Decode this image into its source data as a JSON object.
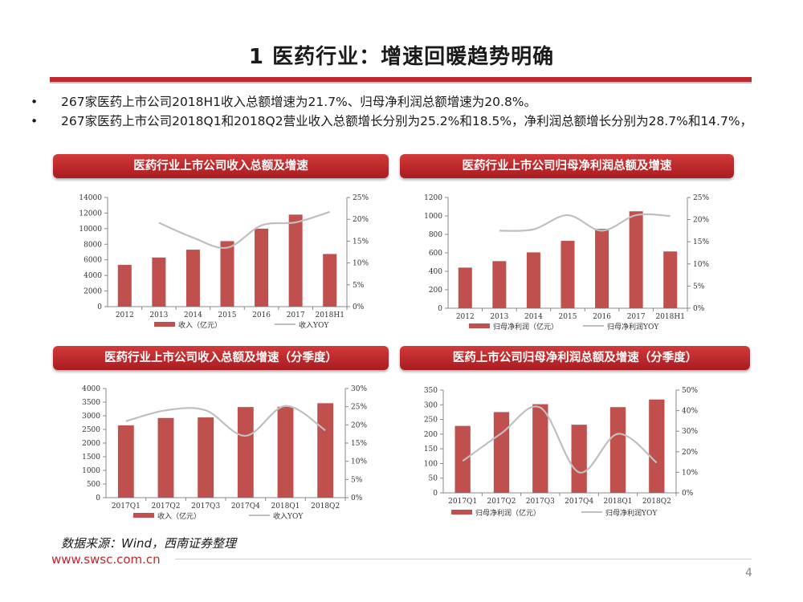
{
  "page": {
    "title": "1 医药行业：增速回暖趋势明确",
    "bullets": [
      "267家医药上市公司2018H1收入总额增速为21.7%、归母净利润总额增速为20.8%。",
      "267家医药上市公司2018Q1和2018Q2营业收入总额增长分别为25.2%和18.5%，净利润总额增长分别为28.7%和14.7%，"
    ],
    "bullet_symbol": "•",
    "source": "数据来源：Wind，西南证券整理",
    "website": "www.swsc.com.cn",
    "page_number": "4",
    "accent_color": "#c0282c"
  },
  "panels": [
    {
      "header": "医药行业上市公司收入总额及增速"
    },
    {
      "header": "医药行业上市公司归母净利润总额及增速"
    },
    {
      "header": "医药行业上市公司收入总额及增速（分季度）"
    },
    {
      "header": "医药上市公司归母净利润总额及增速（分季度）"
    }
  ],
  "chart_data": [
    {
      "type": "bar",
      "categories": [
        "2012",
        "2013",
        "2014",
        "2015",
        "2016",
        "2017",
        "2018H1"
      ],
      "series": [
        {
          "name": "收入（亿元）",
          "kind": "bar",
          "axis": "left",
          "values": [
            5350,
            6300,
            7300,
            8400,
            10000,
            11800,
            6750
          ]
        },
        {
          "name": "收入YOY",
          "kind": "line",
          "axis": "right",
          "values": [
            null,
            19.2,
            15.8,
            13.5,
            18.6,
            19.3,
            21.7
          ]
        }
      ],
      "left_ticks": [
        "14000",
        "12000",
        "10000",
        "8000",
        "6000",
        "4000",
        "2000",
        "0"
      ],
      "right_ticks": [
        "25%",
        "20%",
        "15%",
        "10%",
        "5%",
        "0%"
      ],
      "ylim": [
        0,
        14000
      ],
      "y2lim": [
        0,
        25
      ],
      "legend": "bottom",
      "bar_color": "#c0504d",
      "line_color": "#bfbfbf"
    },
    {
      "type": "bar",
      "categories": [
        "2012",
        "2013",
        "2014",
        "2015",
        "2016",
        "2017",
        "2018H1"
      ],
      "series": [
        {
          "name": "归母净利润（亿元）",
          "kind": "bar",
          "axis": "left",
          "values": [
            440,
            510,
            605,
            730,
            860,
            1050,
            615
          ]
        },
        {
          "name": "归母净利润YOY",
          "kind": "line",
          "axis": "right",
          "values": [
            null,
            17.5,
            17.8,
            21.0,
            17.5,
            21.0,
            20.8
          ]
        }
      ],
      "left_ticks": [
        "1200",
        "1000",
        "800",
        "600",
        "400",
        "200",
        "0"
      ],
      "right_ticks": [
        "25%",
        "20%",
        "15%",
        "10%",
        "5%",
        "0%"
      ],
      "ylim": [
        0,
        1200
      ],
      "y2lim": [
        0,
        25
      ],
      "legend": "bottom",
      "bar_color": "#c0504d",
      "line_color": "#bfbfbf"
    },
    {
      "type": "bar",
      "categories": [
        "2017Q1",
        "2017Q2",
        "2017Q3",
        "2017Q4",
        "2018Q1",
        "2018Q2"
      ],
      "series": [
        {
          "name": "收入（亿元）",
          "kind": "bar",
          "axis": "left",
          "values": [
            2650,
            2920,
            2940,
            3320,
            3330,
            3460
          ]
        },
        {
          "name": "收入YOY",
          "kind": "line",
          "axis": "right",
          "values": [
            21.0,
            24.0,
            24.0,
            17.0,
            25.2,
            18.5
          ]
        }
      ],
      "left_ticks": [
        "4000",
        "3500",
        "3000",
        "2500",
        "2000",
        "1500",
        "1000",
        "500",
        "0"
      ],
      "right_ticks": [
        "30%",
        "25%",
        "20%",
        "15%",
        "10%",
        "5%",
        "0%"
      ],
      "ylim": [
        0,
        4000
      ],
      "y2lim": [
        0,
        30
      ],
      "legend": "bottom",
      "bar_color": "#c0504d",
      "line_color": "#bfbfbf"
    },
    {
      "type": "bar",
      "categories": [
        "2017Q1",
        "2017Q2",
        "2017Q3",
        "2017Q4",
        "2018Q1",
        "2018Q2"
      ],
      "series": [
        {
          "name": "归母净利润（亿元）",
          "kind": "bar",
          "axis": "left",
          "values": [
            228,
            275,
            302,
            232,
            292,
            318
          ]
        },
        {
          "name": "归母净利润YOY",
          "kind": "line",
          "axis": "right",
          "values": [
            15.5,
            29.0,
            41.5,
            10.0,
            28.7,
            14.7
          ]
        }
      ],
      "left_ticks": [
        "350",
        "300",
        "250",
        "200",
        "150",
        "100",
        "50",
        "0"
      ],
      "right_ticks": [
        "50%",
        "40%",
        "30%",
        "20%",
        "10%",
        "0%"
      ],
      "ylim": [
        0,
        350
      ],
      "y2lim": [
        0,
        50
      ],
      "legend": "bottom",
      "bar_color": "#c0504d",
      "line_color": "#bfbfbf"
    }
  ]
}
